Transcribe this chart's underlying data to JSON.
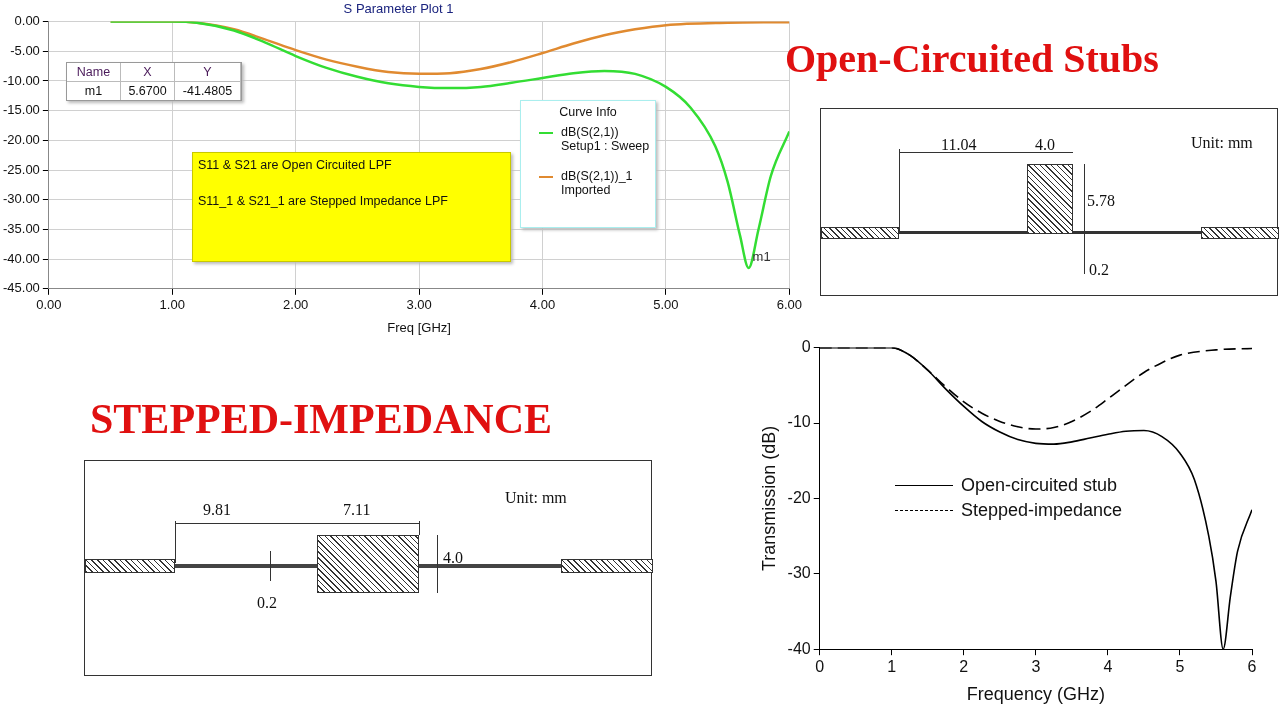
{
  "chart_data": [
    {
      "type": "line",
      "title": "S Parameter Plot 1",
      "xlabel": "Freq [GHz]",
      "legend_title": "Curve Info",
      "legend": "right",
      "grid": true,
      "xlim": [
        0,
        6
      ],
      "xticks": [
        {
          "value": 0,
          "label": "0.00"
        },
        {
          "value": 1,
          "label": "1.00"
        },
        {
          "value": 2,
          "label": "2.00"
        },
        {
          "value": 3,
          "label": "3.00"
        },
        {
          "value": 4,
          "label": "4.00"
        },
        {
          "value": 5,
          "label": "5.00"
        },
        {
          "value": 6,
          "label": "6.00"
        }
      ],
      "ylim": [
        -45,
        0
      ],
      "yticks": [
        {
          "value": 0,
          "label": "0.00"
        },
        {
          "value": -5,
          "label": "-5.00"
        },
        {
          "value": -10,
          "label": "-10.00"
        },
        {
          "value": -15,
          "label": "-15.00"
        },
        {
          "value": -20,
          "label": "-20.00"
        },
        {
          "value": -25,
          "label": "-25.00"
        },
        {
          "value": -30,
          "label": "-30.00"
        },
        {
          "value": -35,
          "label": "-35.00"
        },
        {
          "value": -40,
          "label": "-40.00"
        },
        {
          "value": -45,
          "label": "-45.00"
        }
      ],
      "series": [
        {
          "name": "dB(S(2,1)) Setup1 : Sweep",
          "color": "#33dd33",
          "x": [
            0.5,
            1.0,
            1.2,
            1.5,
            1.75,
            2.0,
            2.25,
            2.5,
            2.75,
            3.0,
            3.25,
            3.5,
            3.75,
            4.0,
            4.25,
            4.5,
            4.75,
            5.0,
            5.2,
            5.4,
            5.5,
            5.6,
            5.67,
            5.75,
            5.85,
            6.0
          ],
          "values": [
            0,
            0,
            -0.2,
            -1.5,
            -3.5,
            -5.8,
            -7.8,
            -9.3,
            -10.4,
            -11.0,
            -11.2,
            -11.0,
            -10.3,
            -9.5,
            -8.7,
            -8.3,
            -8.8,
            -11,
            -14.5,
            -21,
            -27,
            -36,
            -41.5,
            -35,
            -26,
            -18.5
          ]
        },
        {
          "name": "dB(S(2,1))_1 Imported",
          "color": "#e08a30",
          "x": [
            0.5,
            1.0,
            1.2,
            1.5,
            1.75,
            2.0,
            2.25,
            2.5,
            2.75,
            3.0,
            3.25,
            3.5,
            3.75,
            4.0,
            4.25,
            4.5,
            4.75,
            5.0,
            5.5,
            6.0
          ],
          "values": [
            0,
            0,
            -0.2,
            -1.3,
            -3.0,
            -4.8,
            -6.4,
            -7.6,
            -8.5,
            -8.8,
            -8.7,
            -8.0,
            -6.8,
            -5.3,
            -3.7,
            -2.3,
            -1.3,
            -0.6,
            -0.2,
            -0.1
          ]
        }
      ],
      "annotations": [
        "S11 & S21 are Open Circuited LPF",
        "S11_1 & S21_1 are Stepped Impedance LPF",
        {
          "text": "m1",
          "x": 5.67,
          "y": -41.5
        },
        "Name",
        "X",
        "Y",
        "m1",
        "5.6700",
        "-41.4805"
      ]
    },
    {
      "type": "line",
      "xlabel": "Frequency (GHz)",
      "ylabel": "Transmission (dB)",
      "legend": "left",
      "grid": false,
      "xlim": [
        0,
        6
      ],
      "xticks": [
        0,
        1,
        2,
        3,
        4,
        5,
        6
      ],
      "ylim": [
        -40,
        0
      ],
      "yticks": [
        0,
        -10,
        -20,
        -30,
        -40
      ],
      "series": [
        {
          "name": "Open-circuited stub",
          "color": "#000000",
          "line_style": "solid",
          "x": [
            0,
            1.0,
            1.25,
            1.5,
            1.75,
            2.0,
            2.25,
            2.5,
            2.75,
            3.0,
            3.25,
            3.5,
            3.75,
            4.0,
            4.25,
            4.5,
            4.75,
            5.0,
            5.2,
            5.4,
            5.5,
            5.6,
            5.7,
            5.8,
            6.0
          ],
          "values": [
            0,
            0,
            -1,
            -3.0,
            -5.5,
            -7.8,
            -9.8,
            -11.2,
            -12.2,
            -12.7,
            -12.8,
            -12.5,
            -12.0,
            -11.5,
            -11.1,
            -11.0,
            -11.8,
            -14,
            -17.5,
            -25,
            -31,
            -40,
            -33,
            -27,
            -21.5
          ]
        },
        {
          "name": "Stepped-impedance",
          "color": "#000000",
          "line_style": "dashed",
          "x": [
            0,
            1.0,
            1.25,
            1.5,
            1.75,
            2.0,
            2.25,
            2.5,
            2.75,
            3.0,
            3.25,
            3.5,
            3.75,
            4.0,
            4.25,
            4.5,
            4.75,
            5.0,
            5.5,
            6.0
          ],
          "values": [
            0,
            0,
            -1,
            -3,
            -5.2,
            -7.2,
            -8.7,
            -9.8,
            -10.5,
            -10.8,
            -10.6,
            -9.8,
            -8.5,
            -6.8,
            -5.0,
            -3.3,
            -2.0,
            -1.0,
            -0.3,
            -0.1
          ]
        }
      ]
    },
    {
      "type": "other",
      "title": "Open-Circuited Stubs",
      "annotations": [
        "Unit: mm",
        "11.04",
        "4.0",
        "5.78",
        "0.2"
      ]
    },
    {
      "type": "other",
      "title": "STEPPED-IMPEDANCE",
      "annotations": [
        "Unit: mm",
        "9.81",
        "7.11",
        "4.0",
        "0.2"
      ]
    }
  ]
}
